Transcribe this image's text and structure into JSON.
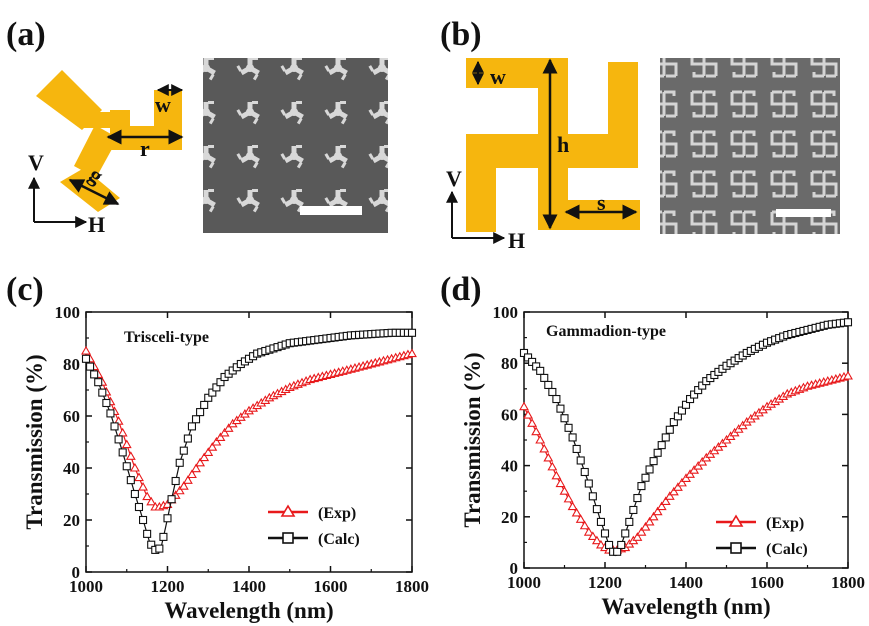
{
  "panels": {
    "a": {
      "label": "(a)",
      "dims": [
        "w",
        "r",
        "g"
      ],
      "axes": [
        "V",
        "H"
      ]
    },
    "b": {
      "label": "(b)",
      "dims": [
        "w",
        "h",
        "s"
      ],
      "axes": [
        "V",
        "H"
      ]
    },
    "c": {
      "label": "(c)"
    },
    "d": {
      "label": "(d)"
    }
  },
  "colors": {
    "gold": "#F6B60E",
    "exp": "#E8191B",
    "calc": "#111111",
    "sem": "#5a5a5a"
  },
  "chart_data": [
    {
      "type": "line",
      "annotation": "Trisceli-type",
      "xlabel": "Wavelength (nm)",
      "ylabel": "Transmission (%)",
      "xlim": [
        1000,
        1800
      ],
      "ylim": [
        0,
        100
      ],
      "xticks": [
        1000,
        1200,
        1400,
        1600,
        1800
      ],
      "yticks": [
        0,
        20,
        40,
        60,
        80,
        100
      ],
      "legend_position": "lower-right",
      "series": [
        {
          "name": "(Exp)",
          "marker": "triangle",
          "color": "#E8191B",
          "x": [
            1000,
            1040,
            1080,
            1120,
            1150,
            1170,
            1180,
            1200,
            1240,
            1280,
            1320,
            1360,
            1400,
            1450,
            1500,
            1550,
            1600,
            1650,
            1700,
            1750,
            1800
          ],
          "y": [
            85,
            73,
            58,
            40,
            29,
            25,
            25,
            26,
            33,
            42,
            50,
            57,
            62,
            67,
            71,
            74,
            76,
            78,
            80,
            82,
            84
          ]
        },
        {
          "name": "(Calc)",
          "marker": "square",
          "color": "#111111",
          "x": [
            1000,
            1030,
            1060,
            1090,
            1120,
            1140,
            1155,
            1165,
            1175,
            1185,
            1195,
            1210,
            1230,
            1260,
            1300,
            1340,
            1380,
            1420,
            1460,
            1500,
            1550,
            1600,
            1650,
            1700,
            1750,
            1800
          ],
          "y": [
            82,
            73,
            61,
            46,
            30,
            20,
            12,
            9,
            8,
            10,
            17,
            28,
            42,
            56,
            67,
            75,
            80,
            84,
            86,
            88,
            89,
            90,
            91,
            91.5,
            92,
            92
          ]
        }
      ]
    },
    {
      "type": "line",
      "annotation": "Gammadion-type",
      "xlabel": "Wavelength (nm)",
      "ylabel": "Transmission (%)",
      "xlim": [
        1000,
        1800
      ],
      "ylim": [
        0,
        100
      ],
      "xticks": [
        1000,
        1200,
        1400,
        1600,
        1800
      ],
      "yticks": [
        0,
        20,
        40,
        60,
        80,
        100
      ],
      "legend_position": "lower-right",
      "series": [
        {
          "name": "(Exp)",
          "marker": "triangle",
          "color": "#E8191B",
          "x": [
            1000,
            1040,
            1080,
            1120,
            1160,
            1190,
            1210,
            1230,
            1250,
            1280,
            1320,
            1360,
            1400,
            1450,
            1500,
            1550,
            1600,
            1650,
            1700,
            1750,
            1800
          ],
          "y": [
            63,
            50,
            36,
            24,
            14,
            9,
            7,
            7,
            8,
            12,
            20,
            28,
            35,
            43,
            50,
            57,
            63,
            68,
            71,
            73,
            75
          ]
        },
        {
          "name": "(Calc)",
          "marker": "square",
          "color": "#111111",
          "x": [
            1000,
            1040,
            1080,
            1120,
            1160,
            1190,
            1210,
            1225,
            1240,
            1260,
            1290,
            1330,
            1370,
            1410,
            1450,
            1500,
            1550,
            1600,
            1650,
            1700,
            1750,
            1800
          ],
          "y": [
            84,
            77,
            66,
            51,
            33,
            18,
            9,
            5,
            9,
            18,
            32,
            45,
            57,
            66,
            73,
            79,
            84,
            88,
            91,
            93,
            95,
            96
          ]
        }
      ]
    }
  ]
}
